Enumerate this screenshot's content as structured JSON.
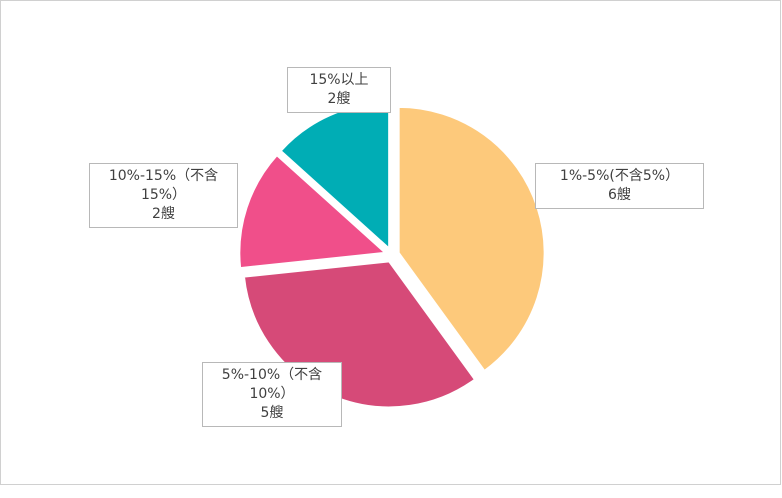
{
  "chart_data": {
    "type": "pie",
    "categories": [
      "1%-5%(不含5%）",
      "5%-10%（不含10%）",
      "10%-15%（不含15%）",
      "15%以上"
    ],
    "values": [
      6,
      5,
      2,
      2
    ],
    "value_labels": [
      "6艘",
      "5艘",
      "2艘",
      "2艘"
    ],
    "colors": [
      "#fdc97b",
      "#d64a78",
      "#f04f8a",
      "#00adb5"
    ]
  }
}
